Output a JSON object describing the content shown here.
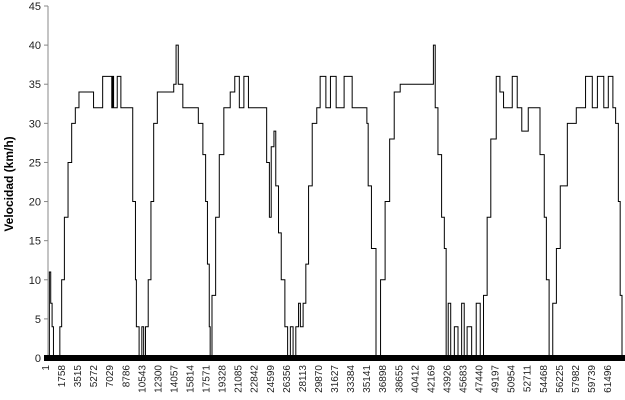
{
  "chart_data": {
    "type": "line",
    "title": "",
    "xlabel": "",
    "ylabel": "Velocidad (km/h)",
    "ylim": [
      0,
      45
    ],
    "xlim": [
      1,
      63000
    ],
    "grid": false,
    "legend": "none",
    "y_ticks": [
      "0",
      "5",
      "10",
      "15",
      "20",
      "25",
      "30",
      "35",
      "40",
      "45"
    ],
    "x_ticks": [
      "1",
      "1758",
      "3515",
      "5272",
      "7029",
      "8786",
      "10543",
      "12300",
      "14057",
      "15814",
      "17571",
      "19328",
      "21085",
      "22842",
      "24599",
      "26356",
      "28113",
      "29870",
      "31627",
      "33384",
      "35141",
      "36898",
      "38655",
      "40412",
      "42169",
      "43926",
      "45683",
      "47440",
      "49197",
      "50954",
      "52711",
      "54468",
      "56225",
      "57982",
      "59739",
      "61496"
    ],
    "series": [
      {
        "color": "#000000",
        "x": [
          1,
          150,
          300,
          450,
          600,
          800,
          1000,
          1300,
          1500,
          1800,
          2200,
          2600,
          3000,
          3400,
          4000,
          5000,
          6000,
          7000,
          7100,
          7200,
          7600,
          8000,
          8500,
          9000,
          9300,
          9600,
          9700,
          10000,
          10300,
          10500,
          10700,
          11000,
          11300,
          11600,
          12000,
          13000,
          13800,
          14057,
          14300,
          14800,
          15500,
          16000,
          16500,
          17000,
          17300,
          17500,
          17700,
          17800,
          18000,
          18400,
          18800,
          19300,
          20000,
          20500,
          21000,
          21500,
          22000,
          22842,
          23500,
          24000,
          24300,
          24500,
          24800,
          25000,
          25300,
          25600,
          26000,
          26300,
          26600,
          26900,
          27200,
          27500,
          27700,
          28000,
          28300,
          28600,
          29000,
          29500,
          29870,
          30500,
          31000,
          31627,
          32500,
          33384,
          34000,
          34500,
          35000,
          35141,
          35500,
          36000,
          36500,
          37000,
          37500,
          38000,
          38655,
          39500,
          40412,
          41500,
          42169,
          42300,
          42500,
          42800,
          43200,
          43500,
          43700,
          43926,
          44200,
          44600,
          45000,
          45400,
          45683,
          46000,
          46500,
          47000,
          47440,
          47800,
          48200,
          48600,
          49197,
          49600,
          50000,
          50954,
          51500,
          52000,
          52711,
          53500,
          54000,
          54468,
          54700,
          55000,
          55400,
          55800,
          56225,
          57000,
          57982,
          59000,
          59739,
          60300,
          61000,
          61496,
          62000,
          62300,
          62600,
          62800,
          63000
        ],
        "y": [
          0,
          11,
          7,
          4,
          0,
          0,
          0,
          4,
          10,
          18,
          25,
          30,
          32,
          34,
          34,
          32,
          36,
          32,
          36,
          32,
          36,
          32,
          32,
          32,
          20,
          10,
          4,
          0,
          4,
          0,
          4,
          10,
          20,
          30,
          34,
          34,
          35,
          40,
          35,
          32,
          32,
          32,
          30,
          26,
          20,
          12,
          4,
          0,
          8,
          18,
          26,
          32,
          34,
          36,
          32,
          36,
          32,
          32,
          32,
          25,
          18,
          27,
          29,
          22,
          16,
          10,
          4,
          0,
          4,
          0,
          4,
          7,
          4,
          7,
          12,
          22,
          30,
          32,
          36,
          32,
          36,
          32,
          36,
          32,
          32,
          32,
          30,
          22,
          14,
          0,
          10,
          20,
          28,
          34,
          35,
          35,
          35,
          35,
          35,
          40,
          32,
          26,
          18,
          14,
          0,
          7,
          0,
          4,
          0,
          7,
          0,
          4,
          0,
          7,
          0,
          8,
          18,
          28,
          36,
          34,
          32,
          36,
          32,
          29,
          32,
          32,
          26,
          18,
          10,
          0,
          7,
          14,
          22,
          30,
          32,
          36,
          32,
          36,
          32,
          36,
          32,
          30,
          20,
          8,
          0
        ]
      }
    ]
  }
}
